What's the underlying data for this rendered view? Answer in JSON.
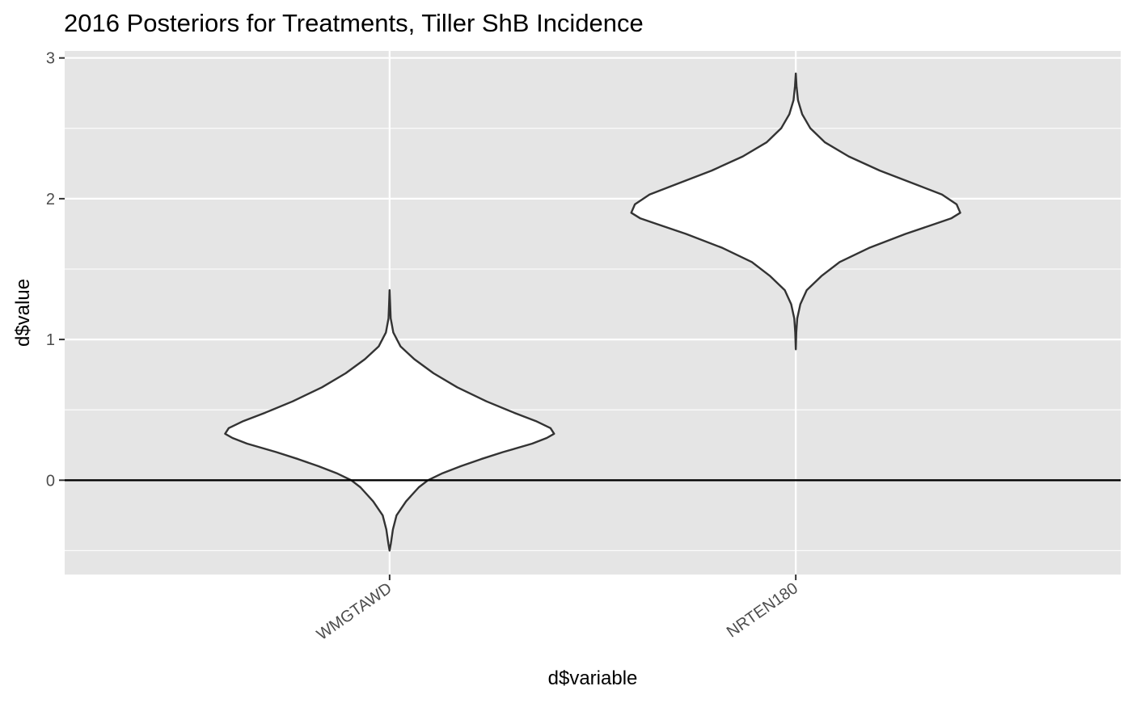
{
  "chart_data": {
    "type": "violin",
    "title": "2016 Posteriors for Treatments, Tiller ShB Incidence",
    "xlabel": "d$variable",
    "ylabel": "d$value",
    "categories": [
      "WMGTAWD",
      "NRTEN180"
    ],
    "y_ticks": [
      0,
      1,
      2,
      3
    ],
    "ylim": [
      -0.67,
      3.05
    ],
    "reference_line_y": 0,
    "grid": true,
    "panel_background": "#e5e5e5",
    "violin_fill": "#ffffff",
    "violin_outline": "#333333",
    "violins": [
      {
        "category": "WMGTAWD",
        "min": -0.5,
        "max": 1.35,
        "density_profile": [
          {
            "value": -0.5,
            "half_width": 0.0
          },
          {
            "value": -0.45,
            "half_width": 0.007
          },
          {
            "value": -0.35,
            "half_width": 0.018
          },
          {
            "value": -0.25,
            "half_width": 0.038
          },
          {
            "value": -0.15,
            "half_width": 0.09
          },
          {
            "value": -0.05,
            "half_width": 0.16
          },
          {
            "value": 0.0,
            "half_width": 0.21
          },
          {
            "value": 0.05,
            "half_width": 0.29
          },
          {
            "value": 0.1,
            "half_width": 0.39
          },
          {
            "value": 0.15,
            "half_width": 0.5
          },
          {
            "value": 0.2,
            "half_width": 0.62
          },
          {
            "value": 0.26,
            "half_width": 0.78
          },
          {
            "value": 0.3,
            "half_width": 0.86
          },
          {
            "value": 0.33,
            "half_width": 0.9
          },
          {
            "value": 0.37,
            "half_width": 0.88
          },
          {
            "value": 0.42,
            "half_width": 0.8
          },
          {
            "value": 0.48,
            "half_width": 0.68
          },
          {
            "value": 0.56,
            "half_width": 0.53
          },
          {
            "value": 0.66,
            "half_width": 0.37
          },
          {
            "value": 0.76,
            "half_width": 0.24
          },
          {
            "value": 0.86,
            "half_width": 0.135
          },
          {
            "value": 0.95,
            "half_width": 0.06
          },
          {
            "value": 1.05,
            "half_width": 0.02
          },
          {
            "value": 1.15,
            "half_width": 0.006
          },
          {
            "value": 1.25,
            "half_width": 0.003
          },
          {
            "value": 1.35,
            "half_width": 0.0
          }
        ]
      },
      {
        "category": "NRTEN180",
        "min": 0.93,
        "max": 2.89,
        "density_profile": [
          {
            "value": 0.93,
            "half_width": 0.0
          },
          {
            "value": 1.05,
            "half_width": 0.003
          },
          {
            "value": 1.15,
            "half_width": 0.008
          },
          {
            "value": 1.25,
            "half_width": 0.025
          },
          {
            "value": 1.35,
            "half_width": 0.06
          },
          {
            "value": 1.45,
            "half_width": 0.14
          },
          {
            "value": 1.55,
            "half_width": 0.24
          },
          {
            "value": 1.65,
            "half_width": 0.4
          },
          {
            "value": 1.75,
            "half_width": 0.6
          },
          {
            "value": 1.82,
            "half_width": 0.76
          },
          {
            "value": 1.86,
            "half_width": 0.85
          },
          {
            "value": 1.9,
            "half_width": 0.9
          },
          {
            "value": 1.96,
            "half_width": 0.88
          },
          {
            "value": 2.03,
            "half_width": 0.8
          },
          {
            "value": 2.1,
            "half_width": 0.66
          },
          {
            "value": 2.2,
            "half_width": 0.46
          },
          {
            "value": 2.3,
            "half_width": 0.29
          },
          {
            "value": 2.4,
            "half_width": 0.16
          },
          {
            "value": 2.5,
            "half_width": 0.08
          },
          {
            "value": 2.6,
            "half_width": 0.035
          },
          {
            "value": 2.7,
            "half_width": 0.012
          },
          {
            "value": 2.8,
            "half_width": 0.004
          },
          {
            "value": 2.89,
            "half_width": 0.0
          }
        ]
      }
    ]
  }
}
